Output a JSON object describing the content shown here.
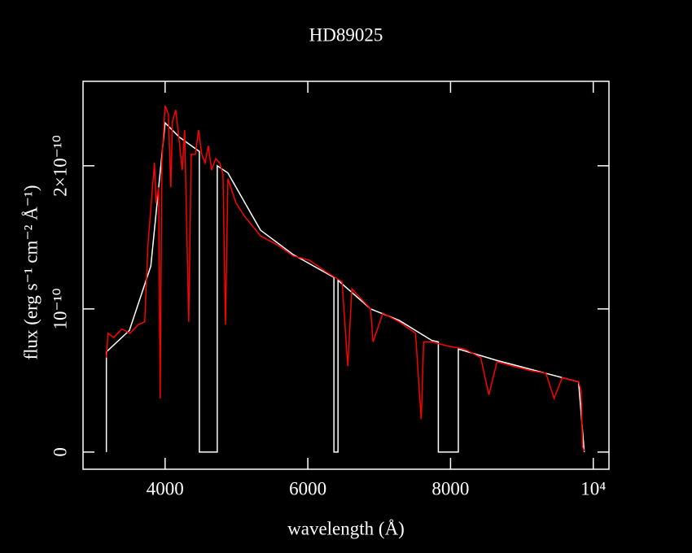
{
  "chart_data": {
    "type": "line",
    "title": "HD89025",
    "xlabel": "wavelength (Å)",
    "ylabel": "flux (erg s⁻¹ cm⁻² Å⁻¹)",
    "xlim": [
      2850,
      10220
    ],
    "ylim": [
      -1.2e-11,
      2.59e-10
    ],
    "xticks": [
      4000,
      6000,
      8000,
      {
        "value": 10000,
        "label": "10⁴"
      }
    ],
    "yticks": [
      0,
      {
        "value": 1e-10,
        "label": "10⁻¹⁰"
      },
      {
        "value": 2e-10,
        "label": "2×10⁻¹⁰"
      }
    ],
    "series": [
      {
        "color": "#ffffff",
        "x": [
          3177,
          3177,
          3500,
          3800,
          4000,
          4200,
          4480,
          4480,
          4731,
          4731,
          4880,
          5337,
          5794,
          6366,
          6366,
          6423,
          6423,
          6880,
          7280,
          7737,
          7829,
          7829,
          8109,
          8109,
          8651,
          9337,
          9794,
          9874
        ],
        "values": [
          0,
          7e-11,
          8.5e-11,
          1.3e-10,
          2.3e-10,
          2.2e-10,
          2.1e-10,
          0,
          0,
          2e-10,
          1.95e-10,
          1.55e-10,
          1.38e-10,
          1.22e-10,
          0,
          0,
          1.2e-10,
          1e-10,
          9.2e-11,
          7.8e-11,
          7.7e-11,
          0,
          0,
          7.2e-11,
          6.4e-11,
          5.5e-11,
          4.9e-11,
          0
        ]
      },
      {
        "color": "#ff0000",
        "x": [
          3177,
          3200,
          3280,
          3394,
          3509,
          3623,
          3714,
          3760,
          3806,
          3851,
          3874,
          3909,
          3931,
          3954,
          4000,
          4046,
          4080,
          4103,
          4149,
          4194,
          4240,
          4274,
          4331,
          4366,
          4423,
          4469,
          4514,
          4560,
          4606,
          4651,
          4709,
          4766,
          4811,
          4846,
          4880,
          4994,
          5109,
          5337,
          5566,
          5794,
          6023,
          6251,
          6480,
          6560,
          6617,
          6709,
          6880,
          6914,
          7051,
          7280,
          7509,
          7589,
          7623,
          7737,
          7966,
          8194,
          8423,
          8537,
          8651,
          8880,
          9109,
          9337,
          9451,
          9566,
          9794,
          9829,
          9851,
          9874
        ],
        "values": [
          6.6e-11,
          8.3e-11,
          8e-11,
          8.6e-11,
          8.3e-11,
          8.9e-11,
          9.1e-11,
          1.45e-10,
          1.74e-10,
          2.02e-10,
          1.74e-10,
          1.85e-10,
          3.75e-11,
          2.02e-10,
          2.42e-10,
          2.36e-10,
          1.85e-10,
          2.31e-10,
          2.39e-10,
          2.19e-10,
          1.97e-10,
          2.25e-10,
          9.1e-11,
          2.08e-10,
          2.08e-10,
          2.25e-10,
          2.08e-10,
          2.02e-10,
          2.14e-10,
          1.97e-10,
          2.05e-10,
          2.02e-10,
          1.94e-10,
          8.9e-11,
          1.91e-10,
          1.74e-10,
          1.65e-10,
          1.51e-10,
          1.45e-10,
          1.37e-10,
          1.34e-10,
          1.26e-10,
          1.19e-10,
          6e-11,
          1.14e-10,
          1.09e-10,
          1e-10,
          7.7e-11,
          9.7e-11,
          9.1e-11,
          8.3e-11,
          2.3e-11,
          7.7e-11,
          7.7e-11,
          7.4e-11,
          7.2e-11,
          6.6e-11,
          4e-11,
          6.3e-11,
          6e-11,
          5.7e-11,
          5.5e-11,
          3.75e-11,
          5.2e-11,
          4.9e-11,
          4.3e-11,
          3.4e-12,
          6e-13
        ]
      }
    ]
  }
}
